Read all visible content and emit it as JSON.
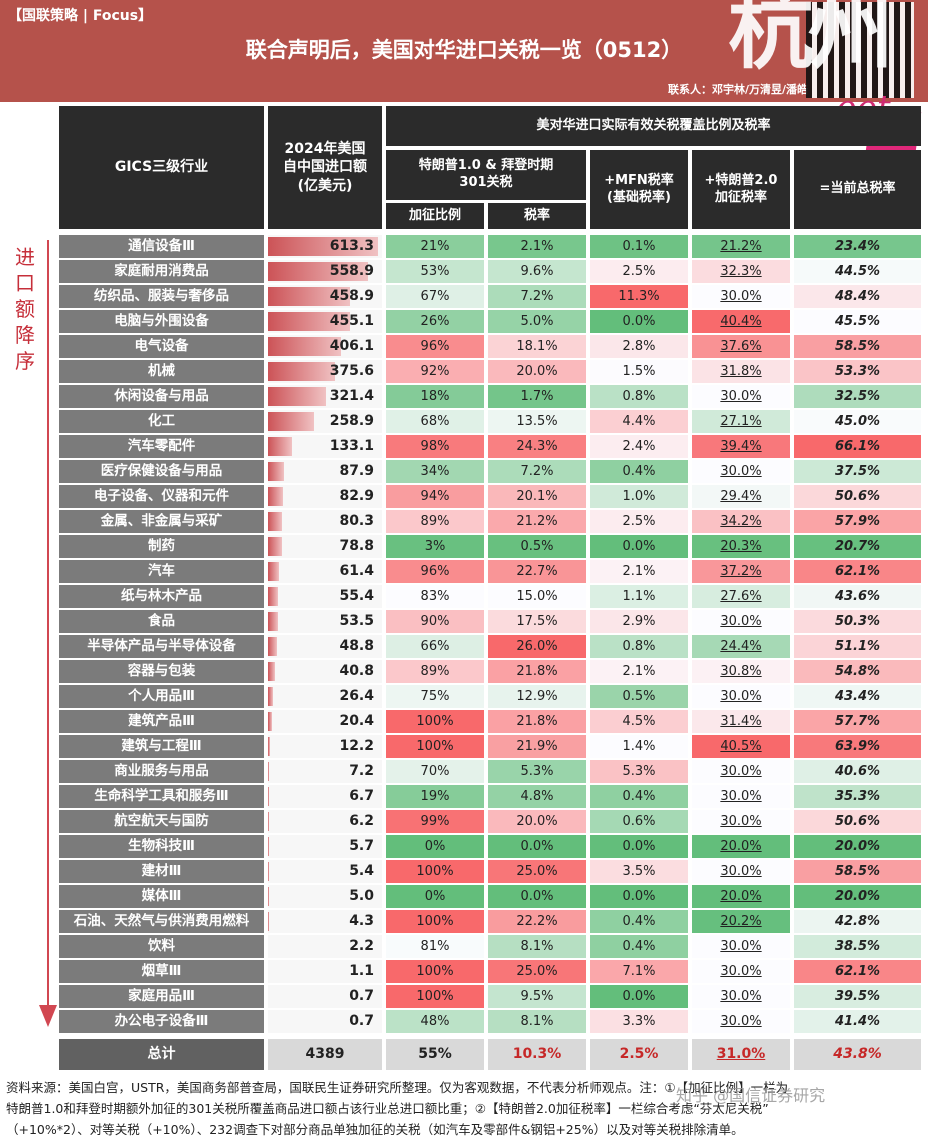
{
  "header": {
    "tag": "【国联策略 | Focus】",
    "title": "联合声明后，美国对华进口关税一览（0512）",
    "contact": "联系人：邓宇林/万清昱/潘皓",
    "watermark_big": "杭州",
    "watermark_script": "oot"
  },
  "side": {
    "label": "进口额降序"
  },
  "columns": {
    "gics": "GICS三级行业",
    "imports": "2024年美国自中国进口额(亿美元)",
    "group": "美对华进口实际有效关税覆盖比例及税率",
    "trump1": "特朗普1.0 & 拜登时期301关税",
    "add_share": "加征比例",
    "rate": "税率",
    "mfn": "+MFN税率(基础税率)",
    "trump2": "+特朗普2.0加征税率",
    "total_rate": "=当前总税率"
  },
  "colors": {
    "header_bg": "#2b2b2b",
    "banner": "#b5524b",
    "green_strong": "#63be7b",
    "red_strong": "#f8696b",
    "accent_red": "#c62828"
  },
  "rows": [
    {
      "name": "通信设备Ⅲ",
      "imp": "613.3",
      "c1": "21%",
      "c2": "2.1%",
      "c3": "0.1%",
      "c4": "21.2%",
      "c5": "23.4%"
    },
    {
      "name": "家庭耐用消费品",
      "imp": "558.9",
      "c1": "53%",
      "c2": "9.6%",
      "c3": "2.5%",
      "c4": "32.3%",
      "c5": "44.5%"
    },
    {
      "name": "纺织品、服装与奢侈品",
      "imp": "458.9",
      "c1": "67%",
      "c2": "7.2%",
      "c3": "11.3%",
      "c4": "30.0%",
      "c5": "48.4%"
    },
    {
      "name": "电脑与外围设备",
      "imp": "455.1",
      "c1": "26%",
      "c2": "5.0%",
      "c3": "0.0%",
      "c4": "40.4%",
      "c5": "45.5%"
    },
    {
      "name": "电气设备",
      "imp": "406.1",
      "c1": "96%",
      "c2": "18.1%",
      "c3": "2.8%",
      "c4": "37.6%",
      "c5": "58.5%"
    },
    {
      "name": "机械",
      "imp": "375.6",
      "c1": "92%",
      "c2": "20.0%",
      "c3": "1.5%",
      "c4": "31.8%",
      "c5": "53.3%"
    },
    {
      "name": "休闲设备与用品",
      "imp": "321.4",
      "c1": "18%",
      "c2": "1.7%",
      "c3": "0.8%",
      "c4": "30.0%",
      "c5": "32.5%"
    },
    {
      "name": "化工",
      "imp": "258.9",
      "c1": "68%",
      "c2": "13.5%",
      "c3": "4.4%",
      "c4": "27.1%",
      "c5": "45.0%"
    },
    {
      "name": "汽车零配件",
      "imp": "133.1",
      "c1": "98%",
      "c2": "24.3%",
      "c3": "2.4%",
      "c4": "39.4%",
      "c5": "66.1%"
    },
    {
      "name": "医疗保健设备与用品",
      "imp": "87.9",
      "c1": "34%",
      "c2": "7.2%",
      "c3": "0.4%",
      "c4": "30.0%",
      "c5": "37.5%"
    },
    {
      "name": "电子设备、仪器和元件",
      "imp": "82.9",
      "c1": "94%",
      "c2": "20.1%",
      "c3": "1.0%",
      "c4": "29.4%",
      "c5": "50.6%"
    },
    {
      "name": "金属、非金属与采矿",
      "imp": "80.3",
      "c1": "89%",
      "c2": "21.2%",
      "c3": "2.5%",
      "c4": "34.2%",
      "c5": "57.9%"
    },
    {
      "name": "制药",
      "imp": "78.8",
      "c1": "3%",
      "c2": "0.5%",
      "c3": "0.0%",
      "c4": "20.3%",
      "c5": "20.7%"
    },
    {
      "name": "汽车",
      "imp": "61.4",
      "c1": "96%",
      "c2": "22.7%",
      "c3": "2.1%",
      "c4": "37.2%",
      "c5": "62.1%"
    },
    {
      "name": "纸与林木产品",
      "imp": "55.4",
      "c1": "83%",
      "c2": "15.0%",
      "c3": "1.1%",
      "c4": "27.6%",
      "c5": "43.6%"
    },
    {
      "name": "食品",
      "imp": "53.5",
      "c1": "90%",
      "c2": "17.5%",
      "c3": "2.9%",
      "c4": "30.0%",
      "c5": "50.3%"
    },
    {
      "name": "半导体产品与半导体设备",
      "imp": "48.8",
      "c1": "66%",
      "c2": "26.0%",
      "c3": "0.8%",
      "c4": "24.4%",
      "c5": "51.1%"
    },
    {
      "name": "容器与包装",
      "imp": "40.8",
      "c1": "89%",
      "c2": "21.8%",
      "c3": "2.1%",
      "c4": "30.8%",
      "c5": "54.8%"
    },
    {
      "name": "个人用品Ⅲ",
      "imp": "26.4",
      "c1": "75%",
      "c2": "12.9%",
      "c3": "0.5%",
      "c4": "30.0%",
      "c5": "43.4%"
    },
    {
      "name": "建筑产品Ⅲ",
      "imp": "20.4",
      "c1": "100%",
      "c2": "21.8%",
      "c3": "4.5%",
      "c4": "31.4%",
      "c5": "57.7%"
    },
    {
      "name": "建筑与工程Ⅲ",
      "imp": "12.2",
      "c1": "100%",
      "c2": "21.9%",
      "c3": "1.4%",
      "c4": "40.5%",
      "c5": "63.9%"
    },
    {
      "name": "商业服务与用品",
      "imp": "7.2",
      "c1": "70%",
      "c2": "5.3%",
      "c3": "5.3%",
      "c4": "30.0%",
      "c5": "40.6%"
    },
    {
      "name": "生命科学工具和服务Ⅲ",
      "imp": "6.7",
      "c1": "19%",
      "c2": "4.8%",
      "c3": "0.4%",
      "c4": "30.0%",
      "c5": "35.3%"
    },
    {
      "name": "航空航天与国防",
      "imp": "6.2",
      "c1": "99%",
      "c2": "20.0%",
      "c3": "0.6%",
      "c4": "30.0%",
      "c5": "50.6%"
    },
    {
      "name": "生物科技Ⅲ",
      "imp": "5.7",
      "c1": "0%",
      "c2": "0.0%",
      "c3": "0.0%",
      "c4": "20.0%",
      "c5": "20.0%"
    },
    {
      "name": "建材Ⅲ",
      "imp": "5.4",
      "c1": "100%",
      "c2": "25.0%",
      "c3": "3.5%",
      "c4": "30.0%",
      "c5": "58.5%"
    },
    {
      "name": "媒体Ⅲ",
      "imp": "5.0",
      "c1": "0%",
      "c2": "0.0%",
      "c3": "0.0%",
      "c4": "20.0%",
      "c5": "20.0%"
    },
    {
      "name": "石油、天然气与供消费用燃料",
      "imp": "4.3",
      "c1": "100%",
      "c2": "22.2%",
      "c3": "0.4%",
      "c4": "20.2%",
      "c5": "42.8%"
    },
    {
      "name": "饮料",
      "imp": "2.2",
      "c1": "81%",
      "c2": "8.1%",
      "c3": "0.4%",
      "c4": "30.0%",
      "c5": "38.5%"
    },
    {
      "name": "烟草Ⅲ",
      "imp": "1.1",
      "c1": "100%",
      "c2": "25.0%",
      "c3": "7.1%",
      "c4": "30.0%",
      "c5": "62.1%"
    },
    {
      "name": "家庭用品Ⅲ",
      "imp": "0.7",
      "c1": "100%",
      "c2": "9.5%",
      "c3": "0.0%",
      "c4": "30.0%",
      "c5": "39.5%"
    },
    {
      "name": "办公电子设备Ⅲ",
      "imp": "0.7",
      "c1": "48%",
      "c2": "8.1%",
      "c3": "3.3%",
      "c4": "30.0%",
      "c5": "41.4%"
    }
  ],
  "total": {
    "name": "总计",
    "imp": "4389",
    "c1": "55%",
    "c2": "10.3%",
    "c3": "2.5%",
    "c4": "31.0%",
    "c5": "43.8%"
  },
  "note": {
    "line1": "资料来源：美国白宫，USTR，美国商务部普查局，国联民生证券研究所整理。仅为客观数据，不代表分析师观点。注：①【加征比例】一栏为",
    "line2": "特朗普1.0和拜登时期额外加征的301关税所覆盖商品进口额占该行业总进口额比重；②【特朗普2.0加征税率】一栏综合考虑“芬太尼关税”",
    "line3": "（+10%*2）、对等关税（+10%）、232调查下对部分商品单独加征的关税（如汽车及零部件&钢铝+25%）以及对等关税排除清单。"
  },
  "watermark_bottom": "知乎 @国信证券研究"
}
